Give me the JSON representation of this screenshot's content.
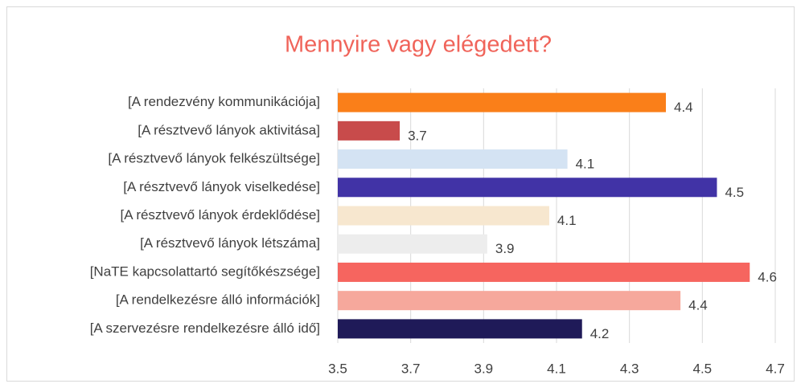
{
  "chart_data": {
    "type": "barh",
    "title": "Mennyire vagy elégedett?",
    "categories": [
      "[A rendezvény kommunikációja]",
      "[A résztvevő lányok aktivitása]",
      "[A résztvevő lányok felkészültsége]",
      "[A résztvevő lányok viselkedése]",
      "[A résztvevő lányok érdeklődése]",
      "[A résztvevő lányok létszáma]",
      "[NaTE kapcsolattartó segítőkészsége]",
      "[A rendelkezésre álló információk]",
      "[A szervezésre rendelkezésre álló idő]"
    ],
    "values": [
      4.4,
      3.67,
      4.13,
      4.54,
      4.08,
      3.91,
      4.63,
      4.44,
      4.17
    ],
    "value_labels": [
      "4.4",
      "3.7",
      "4.1",
      "4.5",
      "4.1",
      "3.9",
      "4.6",
      "4.4",
      "4.2"
    ],
    "colors": [
      "#fa7f19",
      "#c84b4b",
      "#d4e3f3",
      "#4133a6",
      "#f7e7cf",
      "#ededed",
      "#f6655f",
      "#f6a89c",
      "#1f1a58"
    ],
    "xlim": [
      3.5,
      4.7
    ],
    "xticks": [
      3.5,
      3.7,
      3.9,
      4.1,
      4.3,
      4.5,
      4.7
    ],
    "grid": true
  }
}
